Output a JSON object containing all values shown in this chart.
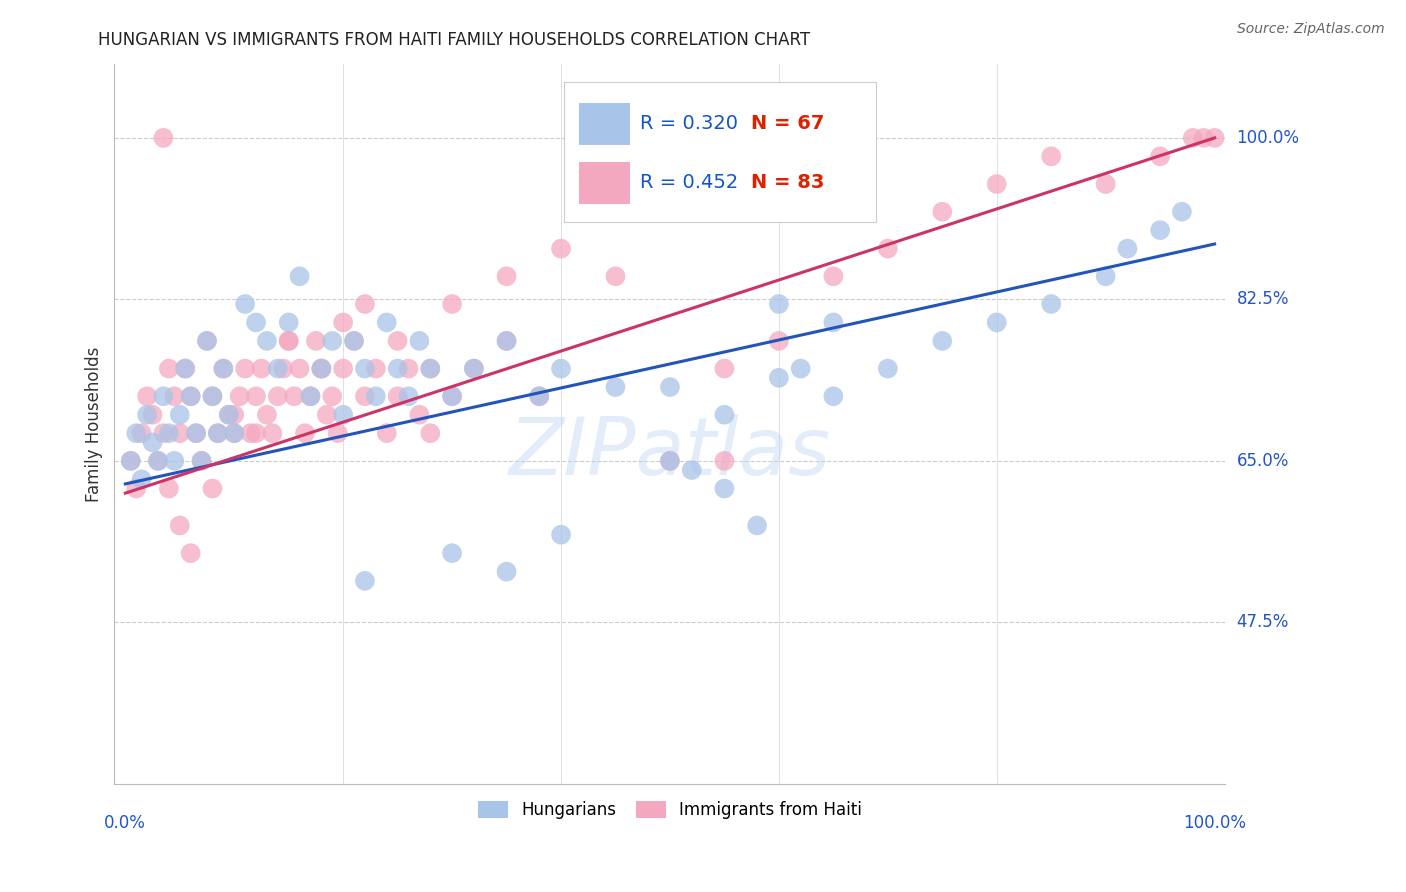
{
  "title": "HUNGARIAN VS IMMIGRANTS FROM HAITI FAMILY HOUSEHOLDS CORRELATION CHART",
  "source": "Source: ZipAtlas.com",
  "ylabel": "Family Households",
  "ytick_labels": [
    "100.0%",
    "82.5%",
    "65.0%",
    "47.5%"
  ],
  "ytick_vals": [
    1.0,
    0.825,
    0.65,
    0.475
  ],
  "watermark": "ZIPatlas",
  "legend_blue_r": "R = 0.320",
  "legend_blue_n": "N = 67",
  "legend_pink_r": "R = 0.452",
  "legend_pink_n": "N = 83",
  "blue_color": "#a8c4e8",
  "pink_color": "#f4a8bf",
  "trend_blue": "#2255bb",
  "trend_pink": "#cc3366",
  "blue_x": [
    0.005,
    0.01,
    0.015,
    0.02,
    0.025,
    0.03,
    0.035,
    0.04,
    0.045,
    0.05,
    0.055,
    0.06,
    0.065,
    0.07,
    0.075,
    0.08,
    0.085,
    0.09,
    0.095,
    0.1,
    0.11,
    0.12,
    0.13,
    0.14,
    0.15,
    0.16,
    0.17,
    0.18,
    0.19,
    0.2,
    0.21,
    0.22,
    0.23,
    0.24,
    0.25,
    0.26,
    0.27,
    0.28,
    0.3,
    0.32,
    0.35,
    0.38,
    0.4,
    0.22,
    0.3,
    0.35,
    0.4,
    0.45,
    0.5,
    0.55,
    0.6,
    0.65,
    0.7,
    0.75,
    0.8,
    0.85,
    0.9,
    0.92,
    0.95,
    0.97,
    0.5,
    0.52,
    0.55,
    0.58,
    0.6,
    0.62,
    0.65
  ],
  "blue_y": [
    0.65,
    0.68,
    0.63,
    0.7,
    0.67,
    0.65,
    0.72,
    0.68,
    0.65,
    0.7,
    0.75,
    0.72,
    0.68,
    0.65,
    0.78,
    0.72,
    0.68,
    0.75,
    0.7,
    0.68,
    0.82,
    0.8,
    0.78,
    0.75,
    0.8,
    0.85,
    0.72,
    0.75,
    0.78,
    0.7,
    0.78,
    0.75,
    0.72,
    0.8,
    0.75,
    0.72,
    0.78,
    0.75,
    0.72,
    0.75,
    0.78,
    0.72,
    0.75,
    0.52,
    0.55,
    0.53,
    0.57,
    0.73,
    0.73,
    0.7,
    0.74,
    0.72,
    0.75,
    0.78,
    0.8,
    0.82,
    0.85,
    0.88,
    0.9,
    0.92,
    0.65,
    0.64,
    0.62,
    0.58,
    0.82,
    0.75,
    0.8
  ],
  "pink_x": [
    0.005,
    0.01,
    0.015,
    0.02,
    0.025,
    0.03,
    0.035,
    0.04,
    0.045,
    0.05,
    0.055,
    0.06,
    0.065,
    0.07,
    0.075,
    0.08,
    0.085,
    0.09,
    0.095,
    0.1,
    0.105,
    0.11,
    0.115,
    0.12,
    0.125,
    0.13,
    0.135,
    0.14,
    0.145,
    0.15,
    0.155,
    0.16,
    0.165,
    0.17,
    0.175,
    0.18,
    0.185,
    0.19,
    0.195,
    0.2,
    0.21,
    0.22,
    0.23,
    0.24,
    0.25,
    0.26,
    0.27,
    0.28,
    0.3,
    0.32,
    0.35,
    0.38,
    0.04,
    0.05,
    0.06,
    0.08,
    0.1,
    0.12,
    0.15,
    0.18,
    0.2,
    0.22,
    0.25,
    0.28,
    0.3,
    0.35,
    0.4,
    0.45,
    0.5,
    0.55,
    0.6,
    0.65,
    0.7,
    0.75,
    0.8,
    0.85,
    0.9,
    0.95,
    0.98,
    1.0,
    0.035,
    0.55,
    0.99
  ],
  "pink_y": [
    0.65,
    0.62,
    0.68,
    0.72,
    0.7,
    0.65,
    0.68,
    0.75,
    0.72,
    0.68,
    0.75,
    0.72,
    0.68,
    0.65,
    0.78,
    0.72,
    0.68,
    0.75,
    0.7,
    0.68,
    0.72,
    0.75,
    0.68,
    0.72,
    0.75,
    0.7,
    0.68,
    0.72,
    0.75,
    0.78,
    0.72,
    0.75,
    0.68,
    0.72,
    0.78,
    0.75,
    0.7,
    0.72,
    0.68,
    0.75,
    0.78,
    0.72,
    0.75,
    0.68,
    0.72,
    0.75,
    0.7,
    0.68,
    0.72,
    0.75,
    0.78,
    0.72,
    0.62,
    0.58,
    0.55,
    0.62,
    0.7,
    0.68,
    0.78,
    0.75,
    0.8,
    0.82,
    0.78,
    0.75,
    0.82,
    0.85,
    0.88,
    0.85,
    0.65,
    0.75,
    0.78,
    0.85,
    0.88,
    0.92,
    0.95,
    0.98,
    0.95,
    0.98,
    1.0,
    1.0,
    1.0,
    0.65,
    1.0
  ],
  "xlim": [
    -0.01,
    1.01
  ],
  "ylim": [
    0.3,
    1.08
  ],
  "blue_trend_x": [
    0.0,
    1.0
  ],
  "blue_trend_y": [
    0.625,
    0.885
  ],
  "pink_trend_x": [
    0.0,
    1.0
  ],
  "pink_trend_y": [
    0.615,
    1.0
  ]
}
